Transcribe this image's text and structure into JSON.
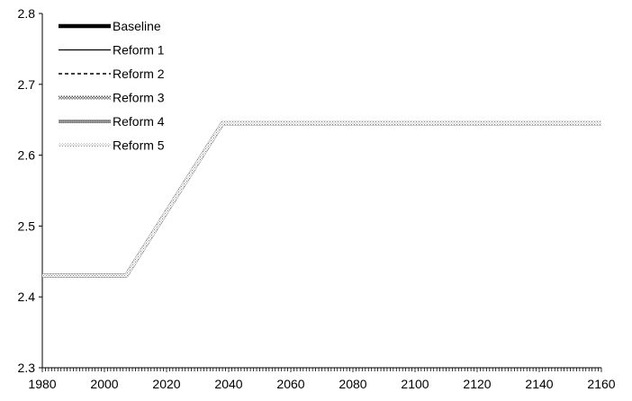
{
  "chart_data": {
    "type": "line",
    "title": "",
    "xlabel": "",
    "ylabel": "",
    "xlim": [
      1980,
      2160
    ],
    "ylim": [
      2.3,
      2.8
    ],
    "x_ticks": [
      1980,
      2000,
      2020,
      2040,
      2060,
      2080,
      2100,
      2120,
      2140,
      2160
    ],
    "y_ticks": [
      2.3,
      2.4,
      2.5,
      2.6,
      2.7,
      2.8
    ],
    "y_tick_labels": [
      "2.3",
      "2.4",
      "2.5",
      "2.6",
      "2.7",
      "2.8"
    ],
    "x_minor_tick_step": 1,
    "grid": false,
    "legend_position": "top-left",
    "x": [
      1980,
      2007,
      2038,
      2160
    ],
    "series": [
      {
        "name": "Baseline",
        "style": "thick-solid",
        "color": "#000000",
        "values": [
          2.43,
          2.43,
          2.645,
          2.645
        ]
      },
      {
        "name": "Reform 1",
        "style": "thin-solid",
        "color": "#000000",
        "values": [
          2.43,
          2.43,
          2.645,
          2.645
        ]
      },
      {
        "name": "Reform 2",
        "style": "dashed",
        "color": "#000000",
        "values": [
          2.43,
          2.43,
          2.645,
          2.645
        ]
      },
      {
        "name": "Reform 3",
        "style": "dense-pattern",
        "color": "#7a7a7a",
        "values": [
          2.43,
          2.43,
          2.645,
          2.645
        ]
      },
      {
        "name": "Reform 4",
        "style": "gray-thick",
        "color": "#8c8c8c",
        "values": [
          2.43,
          2.43,
          2.645,
          2.645
        ]
      },
      {
        "name": "Reform 5",
        "style": "light-dotted",
        "color": "#b4b4b4",
        "values": [
          2.43,
          2.43,
          2.645,
          2.645
        ]
      }
    ]
  }
}
